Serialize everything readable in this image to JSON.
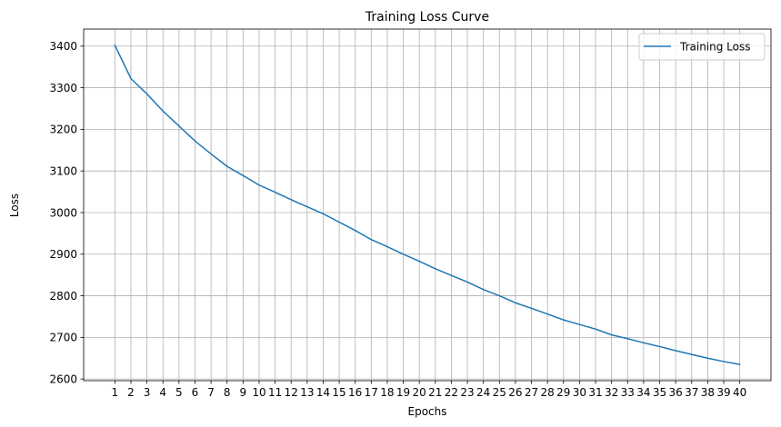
{
  "chart_data": {
    "type": "line",
    "title": "Training Loss Curve",
    "xlabel": "Epochs",
    "ylabel": "Loss",
    "x": [
      1,
      2,
      3,
      4,
      5,
      6,
      7,
      8,
      9,
      10,
      11,
      12,
      13,
      14,
      15,
      16,
      17,
      18,
      19,
      20,
      21,
      22,
      23,
      24,
      25,
      26,
      27,
      28,
      29,
      30,
      31,
      32,
      33,
      34,
      35,
      36,
      37,
      38,
      39,
      40
    ],
    "series": [
      {
        "name": "Training Loss",
        "color": "#1f77b4",
        "values": [
          3402,
          3322,
          3285,
          3244,
          3208,
          3172,
          3141,
          3111,
          3089,
          3066,
          3049,
          3031,
          3014,
          2997,
          2977,
          2957,
          2935,
          2918,
          2900,
          2883,
          2865,
          2849,
          2833,
          2815,
          2800,
          2783,
          2770,
          2756,
          2742,
          2731,
          2720,
          2706,
          2697,
          2687,
          2678,
          2668,
          2659,
          2650,
          2642,
          2635
        ]
      }
    ],
    "xticks": [
      "1",
      "2",
      "3",
      "4",
      "5",
      "6",
      "7",
      "8",
      "9",
      "10",
      "11",
      "12",
      "13",
      "14",
      "15",
      "16",
      "17",
      "18",
      "19",
      "20",
      "21",
      "22",
      "23",
      "24",
      "25",
      "26",
      "27",
      "28",
      "29",
      "30",
      "31",
      "32",
      "33",
      "34",
      "35",
      "36",
      "37",
      "38",
      "39",
      "40"
    ],
    "yticks": [
      2600,
      2700,
      2800,
      2900,
      3000,
      3100,
      3200,
      3300,
      3400
    ],
    "xlim": [
      -0.95,
      41.95
    ],
    "ylim": [
      2596,
      3441
    ],
    "grid": true,
    "legend": "upper right"
  }
}
